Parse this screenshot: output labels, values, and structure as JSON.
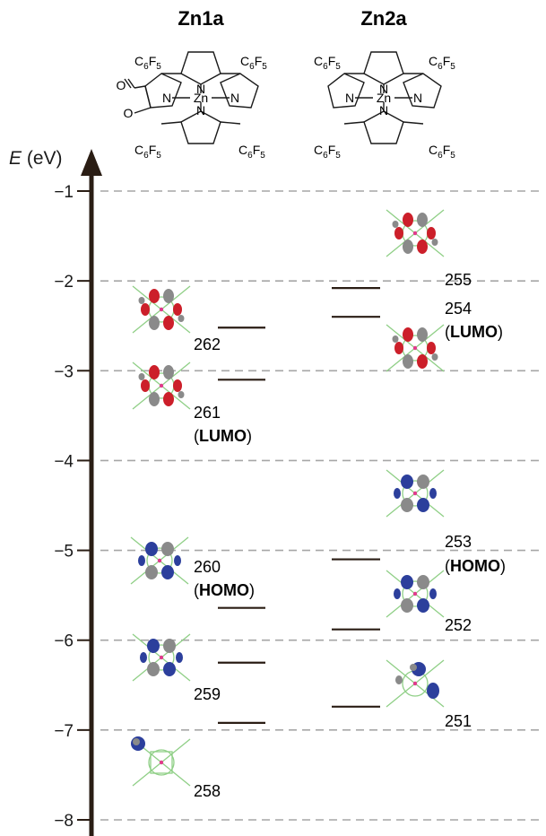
{
  "header": {
    "col1_title": "Zn1a",
    "col2_title": "Zn2a",
    "substituent": "C",
    "substituent_sub": "6",
    "substituent_tail": "F",
    "substituent_sub2": "5",
    "metal": "Zn",
    "nitrogen": "N",
    "oxygen": "O"
  },
  "axis": {
    "label_symbol": "E",
    "label_unit": " (eV)",
    "ticks": [
      "−1",
      "−2",
      "−3",
      "−4",
      "−5",
      "−6",
      "−7",
      "−8"
    ],
    "tick_values": [
      -1,
      -2,
      -3,
      -4,
      -5,
      -6,
      -7,
      -8
    ]
  },
  "chart_data": {
    "type": "energy-level-diagram",
    "ylabel": "E (eV)",
    "ylim": [
      -8,
      -1
    ],
    "grid": true,
    "series": [
      {
        "name": "Zn1a",
        "levels": [
          {
            "orbital": "262",
            "energy": -2.52
          },
          {
            "orbital": "261",
            "energy": -3.1,
            "tag": "LUMO"
          },
          {
            "orbital": "260",
            "energy": -5.64,
            "tag": "HOMO"
          },
          {
            "orbital": "259",
            "energy": -6.25
          },
          {
            "orbital": "258",
            "energy": -6.92
          }
        ]
      },
      {
        "name": "Zn2a",
        "levels": [
          {
            "orbital": "255",
            "energy": -2.08
          },
          {
            "orbital": "254",
            "energy": -2.4,
            "tag": "LUMO"
          },
          {
            "orbital": "253",
            "energy": -5.1,
            "tag": "HOMO"
          },
          {
            "orbital": "252",
            "energy": -5.88
          },
          {
            "orbital": "251",
            "energy": -6.74
          }
        ]
      }
    ]
  },
  "labels": {
    "o262": "262",
    "o261": "261",
    "lumo_open": "(",
    "lumo": "LUMO",
    "lumo_close": ")",
    "o260": "260",
    "homo_open": "(",
    "homo": "HOMO",
    "homo_close": ")",
    "o259": "259",
    "o258": "258",
    "o255": "255",
    "o254": "254",
    "o253": "253",
    "o252": "252",
    "o251": "251"
  },
  "colors": {
    "axis": "#2a1d14",
    "grid": "#a6a6a6",
    "level": "#2a1d14",
    "lobe_red": "#cc1f2a",
    "lobe_grey": "#8a8a8a",
    "lobe_blue": "#2c3f9c",
    "skeleton": "#8fcf86",
    "metal": "#e23a8c"
  }
}
